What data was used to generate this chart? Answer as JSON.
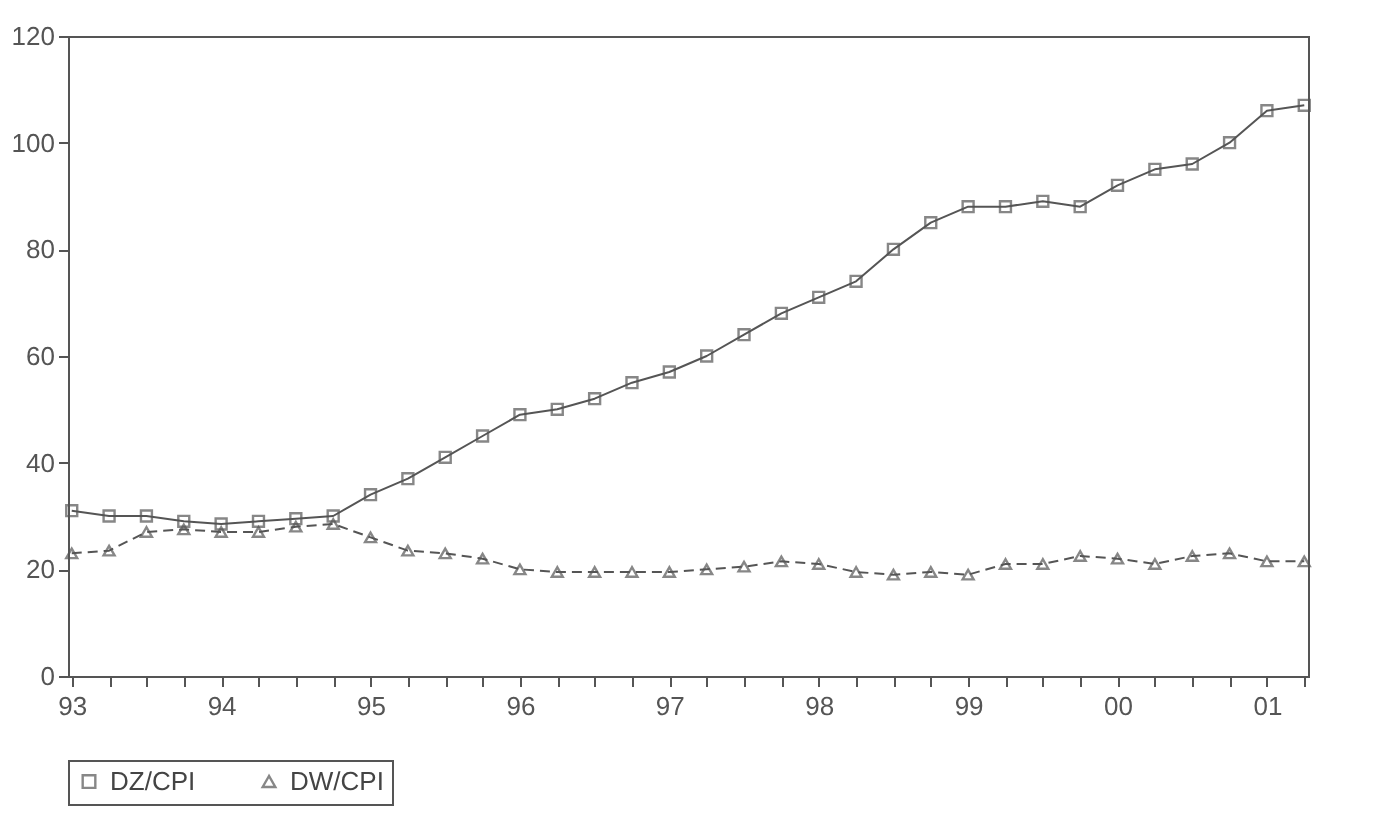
{
  "chart_data": {
    "type": "line",
    "categories": [
      "93",
      null,
      null,
      null,
      "94",
      null,
      null,
      null,
      "95",
      null,
      null,
      null,
      "96",
      null,
      null,
      null,
      "97",
      null,
      null,
      null,
      "98",
      null,
      null,
      null,
      "99",
      null,
      null,
      null,
      "00",
      null,
      null,
      null,
      "01",
      null
    ],
    "series": [
      {
        "name": "DZ/CPI",
        "color": "#555555",
        "marker": "square",
        "line_style": "solid",
        "values": [
          31,
          30,
          30,
          29,
          28.5,
          29,
          29.5,
          30,
          34,
          37,
          41,
          45,
          49,
          50,
          52,
          55,
          57,
          60,
          64,
          68,
          71,
          74,
          80,
          85,
          88,
          88,
          89,
          88,
          92,
          95,
          96,
          100,
          106,
          107
        ]
      },
      {
        "name": "DW/CPI",
        "color": "#555555",
        "marker": "triangle",
        "line_style": "dashed",
        "values": [
          23,
          23.5,
          27,
          27.5,
          27,
          27,
          28,
          28.5,
          26,
          23.5,
          23,
          22,
          20,
          19.5,
          19.5,
          19.5,
          19.5,
          20,
          20.5,
          21.5,
          21,
          19.5,
          19,
          19.5,
          19,
          21,
          21,
          22.5,
          22,
          21,
          22.5,
          23,
          21.5,
          21.5
        ]
      }
    ],
    "ylim": [
      0,
      120
    ],
    "yticks": [
      0,
      20,
      40,
      60,
      80,
      100,
      120
    ],
    "grid": false,
    "legend": "bottom"
  }
}
